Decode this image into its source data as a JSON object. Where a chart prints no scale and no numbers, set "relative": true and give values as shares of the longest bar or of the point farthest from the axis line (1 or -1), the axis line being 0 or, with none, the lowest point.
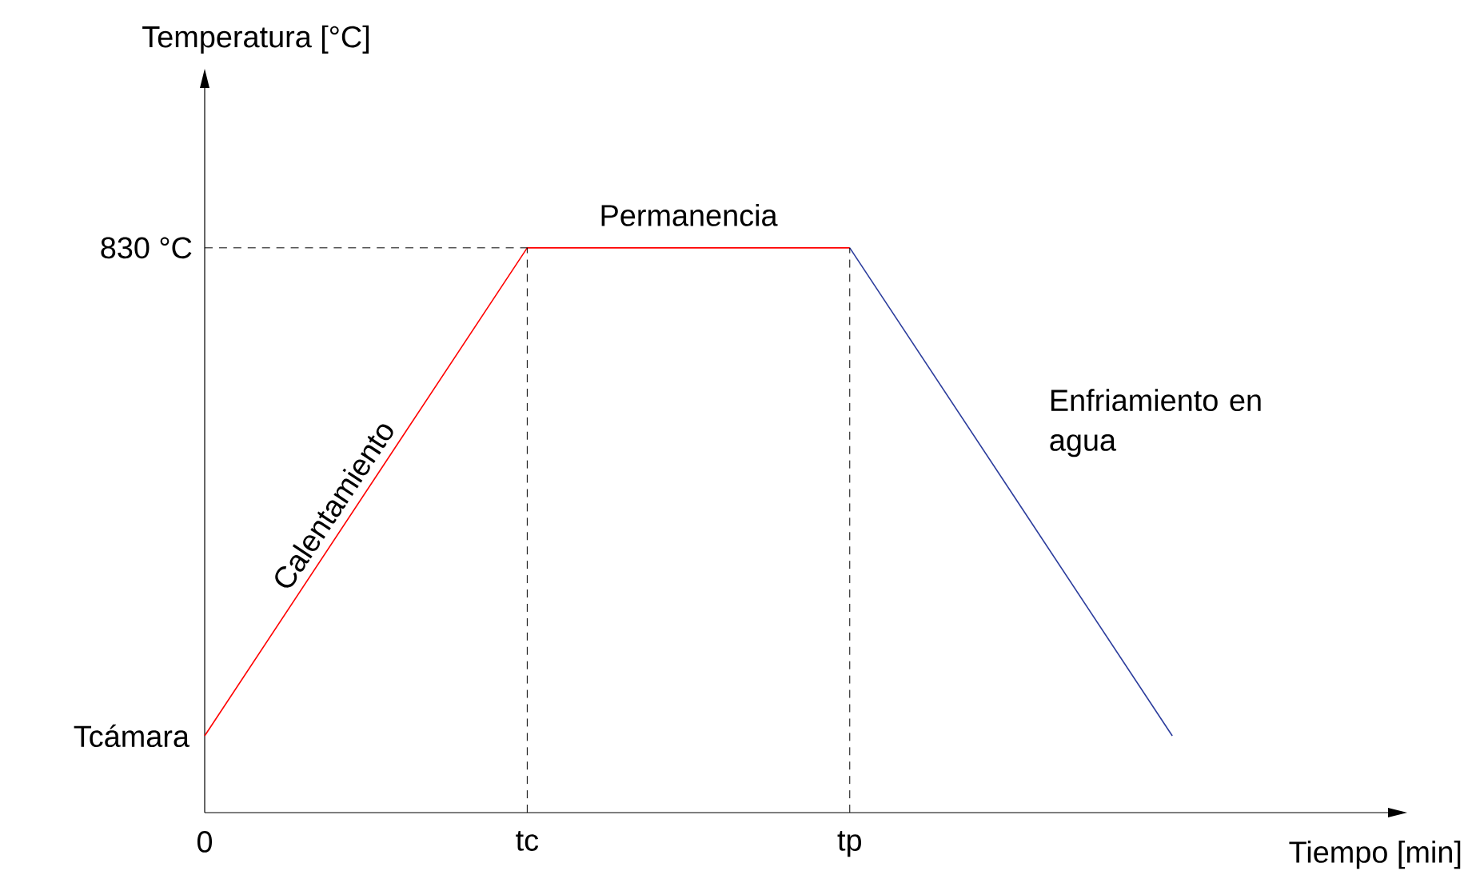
{
  "chart_data": {
    "type": "line",
    "relative": true,
    "xlabel": "Tiempo [min]",
    "categories": [
      "0",
      "tc",
      "tp",
      null
    ],
    "series": [
      {
        "color": "#ff0000",
        "values": [
          0.136,
          1,
          1,
          null
        ]
      },
      {
        "color": "#2b3c9c",
        "values": [
          null,
          null,
          1,
          0.136
        ]
      }
    ],
    "ref_lines": [
      {
        "axis": "y",
        "value": 1,
        "label": "830 °C",
        "line_style": "dashed",
        "color": "#000000"
      },
      {
        "axis": "x",
        "value": "tc",
        "line_style": "dashed",
        "color": "#000000"
      },
      {
        "axis": "x",
        "value": "tp",
        "line_style": "dashed",
        "color": "#000000"
      }
    ],
    "annotations": [
      "Calentamiento",
      "Permanencia",
      "Enfriamiento en agua",
      {
        "text": "Tcámara",
        "x": "0",
        "y": 0.136
      },
      "Temperatura [°C]"
    ],
    "grid": false,
    "marker": "none",
    "line_style": "solid"
  }
}
